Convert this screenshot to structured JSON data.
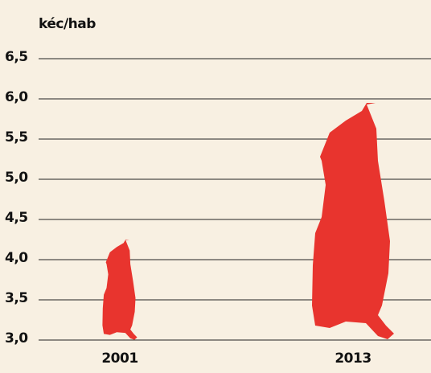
{
  "chart_data": {
    "type": "pictogram",
    "y_label": "kéc/hab",
    "categories": [
      "2001",
      "2013"
    ],
    "values": [
      4.25,
      5.95
    ],
    "color": "#e8342e",
    "ylim": [
      3.0,
      6.5
    ],
    "yticks": [
      {
        "value": 3.0,
        "label": "3,0"
      },
      {
        "value": 3.5,
        "label": "3,5"
      },
      {
        "value": 4.0,
        "label": "4,0"
      },
      {
        "value": 4.5,
        "label": "4,5"
      },
      {
        "value": 5.0,
        "label": "5,0"
      },
      {
        "value": 5.5,
        "label": "5,5"
      },
      {
        "value": 6.0,
        "label": "6,0"
      },
      {
        "value": 6.5,
        "label": "6,5"
      }
    ],
    "grid": true
  }
}
